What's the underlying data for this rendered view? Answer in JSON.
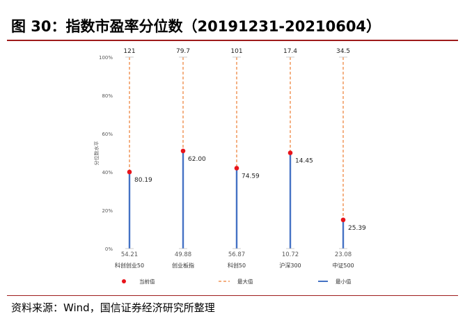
{
  "header": {
    "title": "图 30：指数市盈率分位数（20191231-20210604）"
  },
  "footer": {
    "source": "资料来源：Wind，国信证券经济研究所整理"
  },
  "chart_data": {
    "type": "range-bar",
    "ylabel": "分位数水平",
    "ylim": [
      0,
      100
    ],
    "yticks": [
      "0%",
      "20%",
      "40%",
      "60%",
      "80%",
      "100%"
    ],
    "categories": [
      "科创创业50",
      "创业板指",
      "科创50",
      "沪深300",
      "中证500"
    ],
    "series": [
      {
        "name": "当前值",
        "values": [
          40,
          51,
          42,
          50,
          15
        ],
        "labels": [
          "80.19",
          "62.00",
          "74.59",
          "14.45",
          "25.39"
        ]
      },
      {
        "name": "最大值",
        "values": [
          100,
          100,
          100,
          100,
          100
        ],
        "labels": [
          "121",
          "79.7",
          "101",
          "17.4",
          "34.5"
        ]
      },
      {
        "name": "最小值",
        "values": [
          0,
          0,
          0,
          0,
          0
        ],
        "labels": [
          "54.21",
          "49.88",
          "56.87",
          "10.72",
          "23.08"
        ]
      }
    ],
    "legend": [
      "当前值",
      "最大值",
      "最小值"
    ],
    "legend_position": "bottom",
    "colors": {
      "current": "#e8141b",
      "max": "#ed7d31",
      "min": "#4472c4",
      "axis_text": "#595959"
    }
  }
}
